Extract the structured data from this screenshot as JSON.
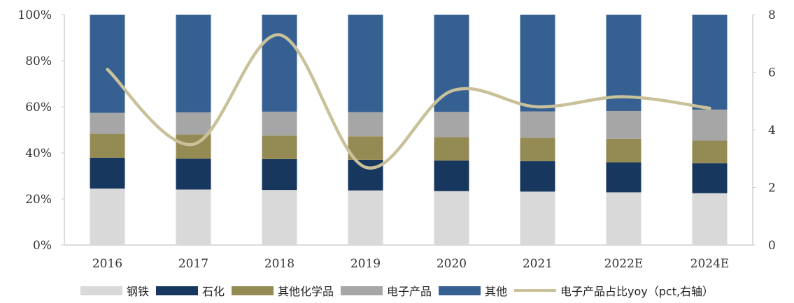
{
  "chart_data": {
    "type": "bar",
    "stacked": true,
    "categories": [
      "2016",
      "2017",
      "2018",
      "2019",
      "2020",
      "2021",
      "2022E",
      "2024E"
    ],
    "series": [
      {
        "name": "钢铁",
        "values": [
          24.5,
          24.1,
          23.9,
          23.7,
          23.4,
          23.2,
          22.9,
          22.5
        ],
        "color": "#d9d9d9"
      },
      {
        "name": "石化",
        "values": [
          13.4,
          13.4,
          13.4,
          13.3,
          13.3,
          13.2,
          13.0,
          13.0
        ],
        "color": "#17375e"
      },
      {
        "name": "其他化学品",
        "values": [
          10.4,
          10.5,
          10.2,
          10.2,
          10.2,
          10.2,
          10.2,
          9.8
        ],
        "color": "#948a54"
      },
      {
        "name": "电子产品",
        "values": [
          9.1,
          9.6,
          10.4,
          10.5,
          10.9,
          11.4,
          12.1,
          13.5
        ],
        "color": "#a6a6a6"
      },
      {
        "name": "其他",
        "values": [
          42.6,
          42.4,
          42.1,
          42.3,
          42.2,
          42.0,
          41.8,
          41.2
        ],
        "color": "#366092"
      }
    ],
    "line": {
      "name": "电子产品占比yoy（pct,右轴）",
      "values": [
        6.1,
        3.5,
        7.3,
        2.7,
        5.35,
        4.8,
        5.15,
        4.75
      ],
      "color": "#c9c19a",
      "axis": "right"
    },
    "ylim": [
      0,
      100
    ],
    "y2lim": [
      0,
      8
    ],
    "yticks": [
      "0%",
      "20%",
      "40%",
      "60%",
      "80%",
      "100%"
    ],
    "y2ticks": [
      "0",
      "2",
      "4",
      "6",
      "8"
    ],
    "grid": false,
    "legend": "bottom"
  }
}
